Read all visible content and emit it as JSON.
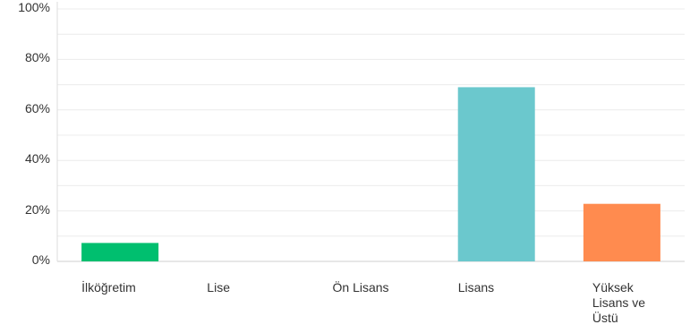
{
  "chart_data": {
    "type": "bar",
    "categories": [
      "İlköğretim",
      "Lise",
      "Ön Lisans",
      "Lisans",
      "Yüksek Lisans ve Üstü"
    ],
    "values": [
      7.3,
      0,
      0,
      69.0,
      22.8
    ],
    "colors": [
      "#00bf6f",
      "#2dccd3",
      "#2dccd3",
      "#6bc8cd",
      "#ff8b4f"
    ],
    "y_ticks": [
      "0%",
      "20%",
      "40%",
      "60%",
      "80%",
      "100%"
    ],
    "ylim": [
      0,
      100
    ],
    "grid": true,
    "title": "",
    "xlabel": "",
    "ylabel": ""
  }
}
